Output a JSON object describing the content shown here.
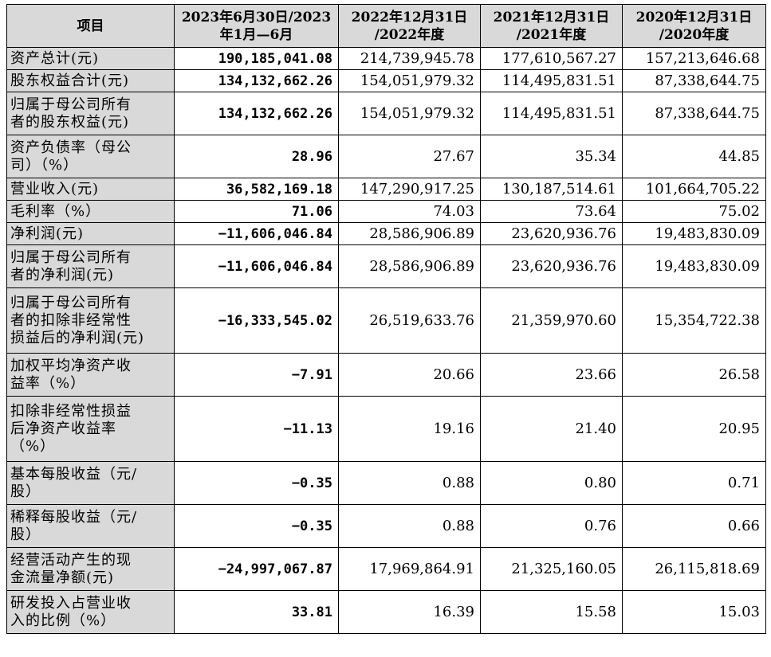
{
  "headers": [
    [
      "项目"
    ],
    [
      "2023年6月30日/2023",
      "年1月—6月"
    ],
    [
      "2022年12月31日",
      "/2022年度"
    ],
    [
      "2021年12月31日",
      "/2021年度"
    ],
    [
      "2020年12月31日",
      "/2020年度"
    ]
  ],
  "rows": [
    {
      "label": [
        "资产总计(元)"
      ],
      "values": [
        "190,185,041.08",
        "214,739,945.78",
        "177,610,567.27",
        "157,213,646.68"
      ]
    },
    {
      "label": [
        "股东权益合计(元)"
      ],
      "values": [
        "134,132,662.26",
        "154,051,979.32",
        "114,495,831.51",
        "87,338,644.75"
      ]
    },
    {
      "label": [
        "归属于母公司所有",
        "者的股东权益(元)"
      ],
      "values": [
        "134,132,662.26",
        "154,051,979.32",
        "114,495,831.51",
        "87,338,644.75"
      ]
    },
    {
      "label": [
        "资产负债率（母公",
        "司）（%）"
      ],
      "values": [
        "28.96",
        "27.67",
        "35.34",
        "44.85"
      ]
    },
    {
      "label": [
        "营业收入(元)"
      ],
      "values": [
        "36,582,169.18",
        "147,290,917.25",
        "130,187,514.61",
        "101,664,705.22"
      ]
    },
    {
      "label": [
        "毛利率（%）"
      ],
      "values": [
        "71.06",
        "74.03",
        "73.64",
        "75.02"
      ]
    },
    {
      "label": [
        "净利润(元)"
      ],
      "values": [
        "−11,606,046.84",
        "28,586,906.89",
        "23,620,936.76",
        "19,483,830.09"
      ]
    },
    {
      "label": [
        "归属于母公司所有",
        "者的净利润(元)"
      ],
      "values": [
        "−11,606,046.84",
        "28,586,906.89",
        "23,620,936.76",
        "19,483,830.09"
      ]
    },
    {
      "label": [
        "归属于母公司所有",
        "者的扣除非经常性",
        "损益后的净利润(元)"
      ],
      "values": [
        "−16,333,545.02",
        "26,519,633.76",
        "21,359,970.60",
        "15,354,722.38"
      ]
    },
    {
      "label": [
        "加权平均净资产收",
        "益率（%）"
      ],
      "values": [
        "−7.91",
        "20.66",
        "23.66",
        "26.58"
      ]
    },
    {
      "label": [
        "扣除非经常性损益",
        "后净资产收益率",
        "（%）"
      ],
      "values": [
        "−11.13",
        "19.16",
        "21.40",
        "20.95"
      ]
    },
    {
      "label": [
        "基本每股收益（元/",
        "股）"
      ],
      "values": [
        "−0.35",
        "0.88",
        "0.80",
        "0.71"
      ]
    },
    {
      "label": [
        "稀释每股收益（元/",
        "股）"
      ],
      "values": [
        "−0.35",
        "0.88",
        "0.76",
        "0.66"
      ]
    },
    {
      "label": [
        "经营活动产生的现",
        "金流量净额(元)"
      ],
      "values": [
        "−24,997,067.87",
        "17,969,864.91",
        "21,325,160.05",
        "26,115,818.69"
      ]
    },
    {
      "label": [
        "研发投入占营业收",
        "入的比例（%）"
      ],
      "values": [
        "33.81",
        "16.39",
        "15.58",
        "15.03"
      ]
    }
  ]
}
